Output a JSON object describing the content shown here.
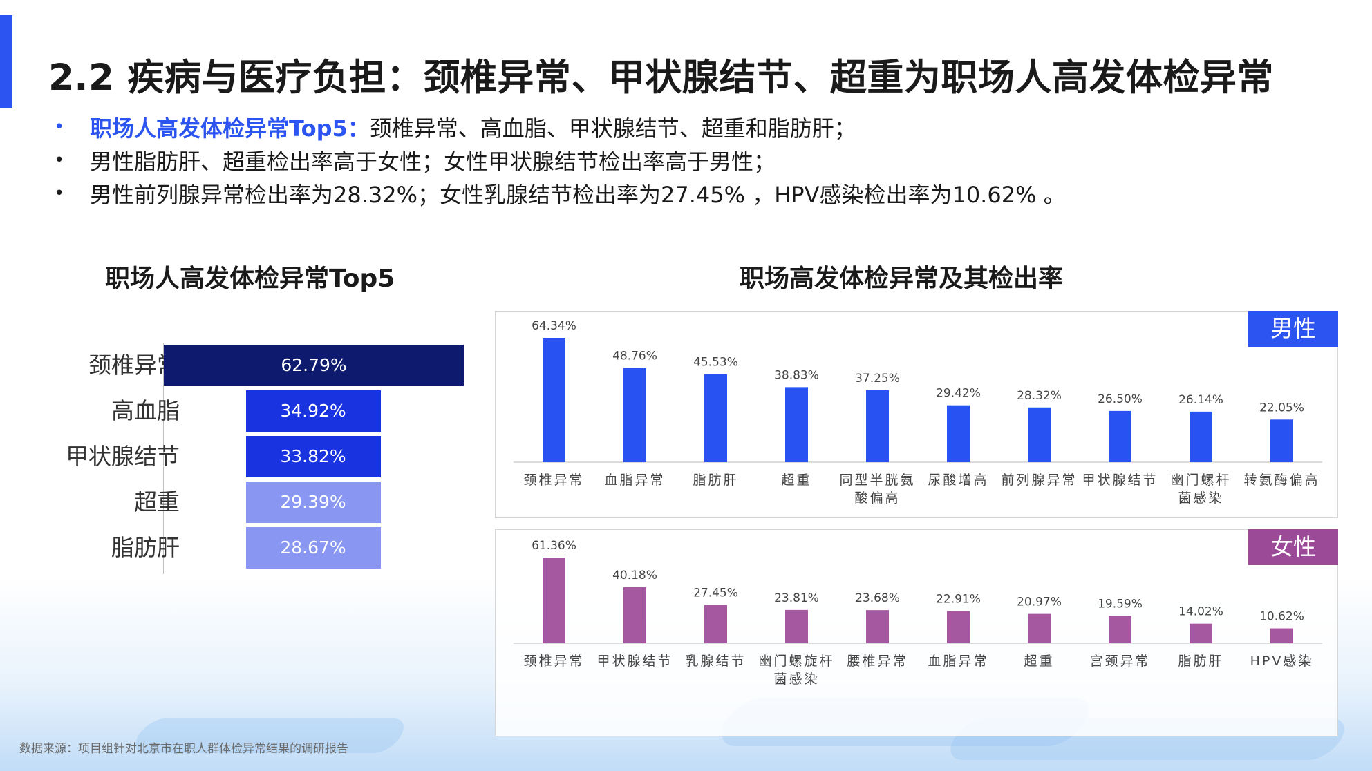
{
  "page": {
    "title": "2.2 疾病与医疗负担：颈椎异常、甲状腺结节、超重为职场人高发体检异常",
    "bullets": [
      {
        "highlight": "职场人高发体检异常Top5：",
        "text": "颈椎异常、高血脂、甲状腺结节、超重和脂肪肝；"
      },
      {
        "highlight": "",
        "text": "男性脂肪肝、超重检出率高于女性；女性甲状腺结节检出率高于男性；"
      },
      {
        "highlight": "",
        "text": "男性前列腺异常检出率为28.32%；女性乳腺结节检出率为27.45% ，HPV感染检出率为10.62% 。"
      }
    ],
    "source": "数据来源：项目组针对北京市在职人群体检异常结果的调研报告",
    "colors": {
      "accent": "#2b54f0",
      "male": "#2952f2",
      "female": "#a5579f",
      "tag_male": "#2b54f0",
      "tag_female": "#9a4a97"
    }
  },
  "chart_data": [
    {
      "type": "bar",
      "orientation": "horizontal-funnel",
      "title": "职场人高发体检异常Top5",
      "categories": [
        "颈椎异常",
        "高血脂",
        "甲状腺结节",
        "超重",
        "脂肪肝"
      ],
      "values": [
        62.79,
        34.92,
        33.82,
        29.39,
        28.67
      ],
      "value_labels": [
        "62.79%",
        "34.92%",
        "33.82%",
        "29.39%",
        "28.67%"
      ],
      "colors": [
        "#0d1a6e",
        "#1a33e0",
        "#1a33e0",
        "#8a97f2",
        "#8a97f2"
      ]
    },
    {
      "type": "bar",
      "title": "职场高发体检异常及其检出率",
      "tag": "男性",
      "categories": [
        "颈椎异常",
        "血脂异常",
        "脂肪肝",
        "超重",
        "同型半胱氨\n酸偏高",
        "尿酸增高",
        "前列腺异常",
        "甲状腺结节",
        "幽门螺杆\n菌感染",
        "转氨酶偏高"
      ],
      "values": [
        64.34,
        48.76,
        45.53,
        38.83,
        37.25,
        29.42,
        28.32,
        26.5,
        26.14,
        22.05
      ],
      "value_labels": [
        "64.34%",
        "48.76%",
        "45.53%",
        "38.83%",
        "37.25%",
        "29.42%",
        "28.32%",
        "26.50%",
        "26.14%",
        "22.05%"
      ],
      "color": "#2952f2"
    },
    {
      "type": "bar",
      "tag": "女性",
      "categories": [
        "颈椎异常",
        "甲状腺结节",
        "乳腺结节",
        "幽门螺旋杆\n菌感染",
        "腰椎异常",
        "血脂异常",
        "超重",
        "宫颈异常",
        "脂肪肝",
        "HPV感染"
      ],
      "values": [
        61.36,
        40.18,
        27.45,
        23.81,
        23.68,
        22.91,
        20.97,
        19.59,
        14.02,
        10.62
      ],
      "value_labels": [
        "61.36%",
        "40.18%",
        "27.45%",
        "23.81%",
        "23.68%",
        "22.91%",
        "20.97%",
        "19.59%",
        "14.02%",
        "10.62%"
      ],
      "color": "#a5579f"
    }
  ]
}
